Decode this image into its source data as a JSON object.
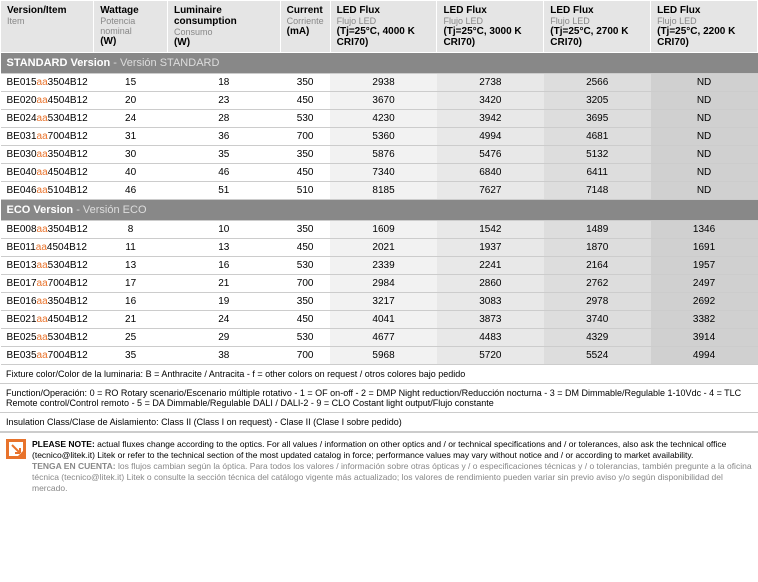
{
  "headers": [
    {
      "main": "Version/Item",
      "sub": "Item",
      "unit": ""
    },
    {
      "main": "Wattage",
      "sub": "Potencia nominal",
      "unit": "(W)"
    },
    {
      "main": "Luminaire consumption",
      "sub": "Consumo",
      "unit": "(W)"
    },
    {
      "main": "Current",
      "sub": "Corriente",
      "unit": "(mA)"
    },
    {
      "main": "LED Flux",
      "sub": "Flujo LED",
      "unit": "(Tj=25°C, 4000 K CRI70)"
    },
    {
      "main": "LED Flux",
      "sub": "Flujo LED",
      "unit": "(Tj=25°C, 3000 K CRI70)"
    },
    {
      "main": "LED Flux",
      "sub": "Flujo LED",
      "unit": "(Tj=25°C, 2700 K CRI70)"
    },
    {
      "main": "LED Flux",
      "sub": "Flujo LED",
      "unit": "(Tj=25°C, 2200 K CRI70)"
    }
  ],
  "sections": [
    {
      "title": "STANDARD Version",
      "trans": " - Versión STANDARD",
      "rows": [
        {
          "code": [
            "BE015",
            "aa",
            "3504B12"
          ],
          "w": "15",
          "cons": "18",
          "cur": "350",
          "f1": "2938",
          "f2": "2738",
          "f3": "2566",
          "f4": "ND"
        },
        {
          "code": [
            "BE020",
            "aa",
            "4504B12"
          ],
          "w": "20",
          "cons": "23",
          "cur": "450",
          "f1": "3670",
          "f2": "3420",
          "f3": "3205",
          "f4": "ND"
        },
        {
          "code": [
            "BE024",
            "aa",
            "5304B12"
          ],
          "w": "24",
          "cons": "28",
          "cur": "530",
          "f1": "4230",
          "f2": "3942",
          "f3": "3695",
          "f4": "ND"
        },
        {
          "code": [
            "BE031",
            "aa",
            "7004B12"
          ],
          "w": "31",
          "cons": "36",
          "cur": "700",
          "f1": "5360",
          "f2": "4994",
          "f3": "4681",
          "f4": "ND"
        },
        {
          "code": [
            "BE030",
            "aa",
            "3504B12"
          ],
          "w": "30",
          "cons": "35",
          "cur": "350",
          "f1": "5876",
          "f2": "5476",
          "f3": "5132",
          "f4": "ND"
        },
        {
          "code": [
            "BE040",
            "aa",
            "4504B12"
          ],
          "w": "40",
          "cons": "46",
          "cur": "450",
          "f1": "7340",
          "f2": "6840",
          "f3": "6411",
          "f4": "ND"
        },
        {
          "code": [
            "BE046",
            "aa",
            "5104B12"
          ],
          "w": "46",
          "cons": "51",
          "cur": "510",
          "f1": "8185",
          "f2": "7627",
          "f3": "7148",
          "f4": "ND"
        }
      ]
    },
    {
      "title": "ECO Version",
      "trans": " - Versión ECO",
      "rows": [
        {
          "code": [
            "BE008",
            "aa",
            "3504B12"
          ],
          "w": "8",
          "cons": "10",
          "cur": "350",
          "f1": "1609",
          "f2": "1542",
          "f3": "1489",
          "f4": "1346"
        },
        {
          "code": [
            "BE011",
            "aa",
            "4504B12"
          ],
          "w": "11",
          "cons": "13",
          "cur": "450",
          "f1": "2021",
          "f2": "1937",
          "f3": "1870",
          "f4": "1691"
        },
        {
          "code": [
            "BE013",
            "aa",
            "5304B12"
          ],
          "w": "13",
          "cons": "16",
          "cur": "530",
          "f1": "2339",
          "f2": "2241",
          "f3": "2164",
          "f4": "1957"
        },
        {
          "code": [
            "BE017",
            "aa",
            "7004B12"
          ],
          "w": "17",
          "cons": "21",
          "cur": "700",
          "f1": "2984",
          "f2": "2860",
          "f3": "2762",
          "f4": "2497"
        },
        {
          "code": [
            "BE016",
            "aa",
            "3504B12"
          ],
          "w": "16",
          "cons": "19",
          "cur": "350",
          "f1": "3217",
          "f2": "3083",
          "f3": "2978",
          "f4": "2692"
        },
        {
          "code": [
            "BE021",
            "aa",
            "4504B12"
          ],
          "w": "21",
          "cons": "24",
          "cur": "450",
          "f1": "4041",
          "f2": "3873",
          "f3": "3740",
          "f4": "3382"
        },
        {
          "code": [
            "BE025",
            "aa",
            "5304B12"
          ],
          "w": "25",
          "cons": "29",
          "cur": "530",
          "f1": "4677",
          "f2": "4483",
          "f3": "4329",
          "f4": "3914"
        },
        {
          "code": [
            "BE035",
            "aa",
            "7004B12"
          ],
          "w": "35",
          "cons": "38",
          "cur": "700",
          "f1": "5968",
          "f2": "5720",
          "f3": "5524",
          "f4": "4994"
        }
      ]
    }
  ],
  "notes": [
    {
      "lbl": "Fixture color/",
      "lbl_es": "Color de la luminaria:",
      "txt": " B = Anthracite / ",
      "txt_es": "Antracita",
      "txt2": " - f = other colors on request / ",
      "txt_es2": "otros colores bajo pedido"
    },
    {
      "lbl": "Function/",
      "lbl_es": "Operación:",
      "txt": " 0 = RO Rotary scenario/",
      "txt_es": "Escenario múltiple rotativo",
      "txt2": " - 1 = OF on-off - 2 = DMP Night reduction/",
      "txt_es2": "Reducción nocturna",
      "txt3": " - 3 = DM Dimmable/",
      "txt_es3": "Regulable",
      "txt4": " 1-10Vdc - 4 = TLC Remote control/",
      "txt_es4": "Control remoto",
      "txt5": " - 5 = DA Dimmable/",
      "txt_es5": "Regulable",
      "txt6": " DALI / DALI-2 - 9 = CLO Costant light output/",
      "txt_es6": "Flujo constante"
    },
    {
      "lbl": "Insulation Class/",
      "lbl_es": "Clase de Aislamiento:",
      "txt": " Class II (Class I on request) - ",
      "txt_es": "Clase II (Clase I sobre pedido)"
    }
  ],
  "pleaseNote": {
    "bold": "PLEASE NOTE:",
    "txt": " actual fluxes change according to the optics. For all values / information on other optics and / or technical specifications and / or tolerances, also ask the technical office (tecnico@litek.it) Litek or refer to the technical section of the most updated catalog in force; performance values may vary without notice and / or according to market availability.",
    "bold_es": "TENGA EN CUENTA:",
    "txt_es": " los flujos cambian según la óptica. Para todos los valores / información sobre otras ópticas y / o especificaciones técnicas y / o tolerancias, también pregunte a la oficina técnica (tecnico@litek.it) Litek o consulte la sección técnica del catálogo vigente más actualizado; los valores de rendimiento pueden variar sin previo aviso y/o según disponibilidad del mercado."
  }
}
